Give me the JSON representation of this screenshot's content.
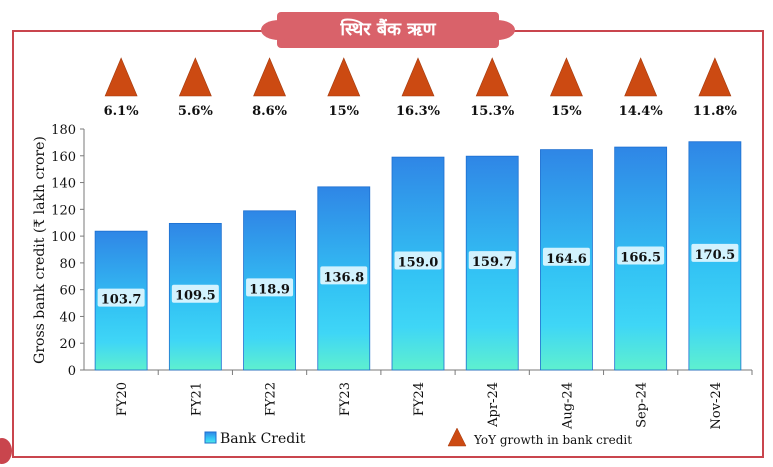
{
  "header": {
    "title": "स्थिर बैंक ऋण"
  },
  "chart_data": {
    "type": "bar",
    "categories": [
      "FY20",
      "FY21",
      "FY22",
      "FY23",
      "FY24",
      "Apr-24",
      "Aug-24",
      "Sep-24",
      "Nov-24"
    ],
    "series": [
      {
        "name": "Bank Credit",
        "values": [
          103.7,
          109.5,
          118.9,
          136.8,
          159.0,
          159.7,
          164.6,
          166.5,
          170.5
        ]
      }
    ],
    "value_labels": [
      "103.7",
      "109.5",
      "118.9",
      "136.8",
      "159.0",
      "159.7",
      "164.6",
      "166.5",
      "170.5"
    ],
    "yoy_growth": {
      "name": "YoY growth in bank credit",
      "labels": [
        "6.1%",
        "5.6%",
        "8.6%",
        "15%",
        "16.3%",
        "15.3%",
        "15%",
        "14.4%",
        "11.8%"
      ]
    },
    "ylabel": "Gross bank credit (₹ lakh crore)",
    "xlabel": "",
    "ylim": [
      0,
      180
    ],
    "yticks": [
      0,
      20,
      40,
      60,
      80,
      100,
      120,
      140,
      160,
      180
    ],
    "legend_position": "bottom",
    "colors": {
      "bar_top": "#2f86e6",
      "bar_mid": "#33c3f4",
      "bar_bottom": "#5ef0cf",
      "triangle": "#cc4a12",
      "frame": "#c9454d"
    }
  }
}
